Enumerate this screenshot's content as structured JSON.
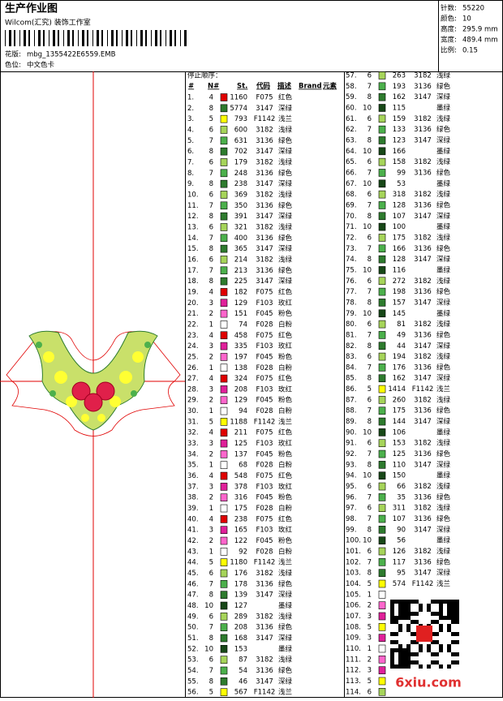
{
  "header": {
    "title": "生产作业图",
    "subtitle": "Wilcom(汇究) 装饰工作室",
    "design_label": "花版:",
    "design": "mbg_1355422E6559.EMB",
    "chart_label": "色位:",
    "chart": "中文色卡"
  },
  "info": [
    [
      "针数:",
      "55220"
    ],
    [
      "颜色:",
      "10"
    ],
    [
      "高度:",
      "295.9 mm"
    ],
    [
      "宽度:",
      "489.4 mm"
    ],
    [
      "比例:",
      "0.15"
    ]
  ],
  "table": {
    "caption": "停止顺序：",
    "columns": [
      "#",
      "N#",
      "St.",
      "代码",
      "描述",
      "Brand",
      "元素"
    ],
    "palette": {
      "1": "#ffffff",
      "2": "#ff66cc",
      "3": "#e0209a",
      "4": "#e00000",
      "5": "#ffff00",
      "6": "#a6d45a",
      "7": "#4cb04c",
      "8": "#2e7b2e",
      "10": "#184818"
    },
    "rows": [
      [
        "1.",
        4,
        1160,
        "F075",
        "红色"
      ],
      [
        "2.",
        8,
        5774,
        "3147",
        "深绿"
      ],
      [
        "3.",
        5,
        793,
        "F1142",
        "浅兰"
      ],
      [
        "4.",
        6,
        600,
        "3182",
        "浅绿"
      ],
      [
        "5.",
        7,
        631,
        "3136",
        "绿色"
      ],
      [
        "6.",
        8,
        702,
        "3147",
        "深绿"
      ],
      [
        "7.",
        6,
        179,
        "3182",
        "浅绿"
      ],
      [
        "8.",
        7,
        248,
        "3136",
        "绿色"
      ],
      [
        "9.",
        8,
        238,
        "3147",
        "深绿"
      ],
      [
        "10.",
        6,
        369,
        "3182",
        "浅绿"
      ],
      [
        "11.",
        7,
        350,
        "3136",
        "绿色"
      ],
      [
        "12.",
        8,
        391,
        "3147",
        "深绿"
      ],
      [
        "13.",
        6,
        321,
        "3182",
        "浅绿"
      ],
      [
        "14.",
        7,
        400,
        "3136",
        "绿色"
      ],
      [
        "15.",
        8,
        365,
        "3147",
        "深绿"
      ],
      [
        "16.",
        6,
        214,
        "3182",
        "浅绿"
      ],
      [
        "17.",
        7,
        213,
        "3136",
        "绿色"
      ],
      [
        "18.",
        8,
        225,
        "3147",
        "深绿"
      ],
      [
        "19.",
        4,
        182,
        "F075",
        "红色"
      ],
      [
        "20.",
        3,
        129,
        "F103",
        "玫红"
      ],
      [
        "21.",
        2,
        151,
        "F045",
        "粉色"
      ],
      [
        "22.",
        1,
        74,
        "F028",
        "白粉"
      ],
      [
        "23.",
        4,
        458,
        "F075",
        "红色"
      ],
      [
        "24.",
        3,
        335,
        "F103",
        "玫红"
      ],
      [
        "25.",
        2,
        197,
        "F045",
        "粉色"
      ],
      [
        "26.",
        1,
        138,
        "F028",
        "白粉"
      ],
      [
        "27.",
        4,
        324,
        "F075",
        "红色"
      ],
      [
        "28.",
        3,
        208,
        "F103",
        "玫红"
      ],
      [
        "29.",
        2,
        129,
        "F045",
        "粉色"
      ],
      [
        "30.",
        1,
        94,
        "F028",
        "白粉"
      ],
      [
        "31.",
        5,
        1188,
        "F1142",
        "浅兰"
      ],
      [
        "32.",
        4,
        211,
        "F075",
        "红色"
      ],
      [
        "33.",
        3,
        125,
        "F103",
        "玫红"
      ],
      [
        "34.",
        2,
        137,
        "F045",
        "粉色"
      ],
      [
        "35.",
        1,
        68,
        "F028",
        "白粉"
      ],
      [
        "36.",
        4,
        548,
        "F075",
        "红色"
      ],
      [
        "37.",
        3,
        378,
        "F103",
        "玫红"
      ],
      [
        "38.",
        2,
        316,
        "F045",
        "粉色"
      ],
      [
        "39.",
        1,
        175,
        "F028",
        "白粉"
      ],
      [
        "40.",
        4,
        238,
        "F075",
        "红色"
      ],
      [
        "41.",
        3,
        165,
        "F103",
        "玫红"
      ],
      [
        "42.",
        2,
        122,
        "F045",
        "粉色"
      ],
      [
        "43.",
        1,
        92,
        "F028",
        "白粉"
      ],
      [
        "44.",
        5,
        1180,
        "F1142",
        "浅兰"
      ],
      [
        "45.",
        6,
        176,
        "3182",
        "浅绿"
      ],
      [
        "46.",
        7,
        178,
        "3136",
        "绿色"
      ],
      [
        "47.",
        8,
        139,
        "3147",
        "深绿"
      ],
      [
        "48.",
        10,
        127,
        null,
        "墨绿"
      ],
      [
        "49.",
        6,
        289,
        "3182",
        "浅绿"
      ],
      [
        "50.",
        7,
        208,
        "3136",
        "绿色"
      ],
      [
        "51.",
        8,
        168,
        "3147",
        "深绿"
      ],
      [
        "52.",
        10,
        153,
        null,
        "墨绿"
      ],
      [
        "53.",
        6,
        87,
        "3182",
        "浅绿"
      ],
      [
        "54.",
        7,
        54,
        "3136",
        "绿色"
      ],
      [
        "55.",
        8,
        46,
        "3147",
        "深绿"
      ],
      [
        "56.",
        5,
        567,
        "F1142",
        "浅兰"
      ],
      [
        "57.",
        6,
        263,
        "3182",
        "浅绿"
      ],
      [
        "58.",
        7,
        193,
        "3136",
        "绿色"
      ],
      [
        "59.",
        8,
        162,
        "3147",
        "深绿"
      ],
      [
        "60.",
        10,
        115,
        null,
        "墨绿"
      ],
      [
        "61.",
        6,
        159,
        "3182",
        "浅绿"
      ],
      [
        "62.",
        7,
        133,
        "3136",
        "绿色"
      ],
      [
        "63.",
        8,
        123,
        "3147",
        "深绿"
      ],
      [
        "64.",
        10,
        166,
        null,
        "墨绿"
      ],
      [
        "65.",
        6,
        158,
        "3182",
        "浅绿"
      ],
      [
        "66.",
        7,
        99,
        "3136",
        "绿色"
      ],
      [
        "67.",
        10,
        53,
        null,
        "墨绿"
      ],
      [
        "68.",
        6,
        318,
        "3182",
        "浅绿"
      ],
      [
        "69.",
        7,
        128,
        "3136",
        "绿色"
      ],
      [
        "70.",
        8,
        107,
        "3147",
        "深绿"
      ],
      [
        "71.",
        10,
        100,
        null,
        "墨绿"
      ],
      [
        "72.",
        6,
        175,
        "3182",
        "浅绿"
      ],
      [
        "73.",
        7,
        166,
        "3136",
        "绿色"
      ],
      [
        "74.",
        8,
        128,
        "3147",
        "深绿"
      ],
      [
        "75.",
        10,
        116,
        null,
        "墨绿"
      ],
      [
        "76.",
        6,
        272,
        "3182",
        "浅绿"
      ],
      [
        "77.",
        7,
        198,
        "3136",
        "绿色"
      ],
      [
        "78.",
        8,
        157,
        "3147",
        "深绿"
      ],
      [
        "79.",
        10,
        145,
        null,
        "墨绿"
      ],
      [
        "80.",
        6,
        81,
        "3182",
        "浅绿"
      ],
      [
        "81.",
        7,
        49,
        "3136",
        "绿色"
      ],
      [
        "82.",
        8,
        44,
        "3147",
        "深绿"
      ],
      [
        "83.",
        6,
        194,
        "3182",
        "浅绿"
      ],
      [
        "84.",
        7,
        176,
        "3136",
        "绿色"
      ],
      [
        "85.",
        8,
        162,
        "3147",
        "深绿"
      ],
      [
        "86.",
        5,
        1414,
        "F1142",
        "浅兰"
      ],
      [
        "87.",
        6,
        260,
        "3182",
        "浅绿"
      ],
      [
        "88.",
        7,
        175,
        "3136",
        "绿色"
      ],
      [
        "89.",
        8,
        144,
        "3147",
        "深绿"
      ],
      [
        "90.",
        10,
        106,
        null,
        "墨绿"
      ],
      [
        "91.",
        6,
        153,
        "3182",
        "浅绿"
      ],
      [
        "92.",
        7,
        125,
        "3136",
        "绿色"
      ],
      [
        "93.",
        8,
        110,
        "3147",
        "深绿"
      ],
      [
        "94.",
        10,
        150,
        null,
        "墨绿"
      ],
      [
        "95.",
        6,
        66,
        "3182",
        "浅绿"
      ],
      [
        "96.",
        7,
        35,
        "3136",
        "绿色"
      ],
      [
        "97.",
        6,
        311,
        "3182",
        "浅绿"
      ],
      [
        "98.",
        7,
        107,
        "3136",
        "绿色"
      ],
      [
        "99.",
        8,
        90,
        "3147",
        "深绿"
      ],
      [
        "100.",
        10,
        56,
        null,
        "墨绿"
      ],
      [
        "101.",
        6,
        126,
        "3182",
        "浅绿"
      ],
      [
        "102.",
        7,
        117,
        "3136",
        "绿色"
      ],
      [
        "103.",
        8,
        95,
        "3147",
        "深绿"
      ],
      [
        "104.",
        5,
        574,
        "F1142",
        "浅兰"
      ],
      [
        "105.",
        1,
        null,
        null,
        null
      ],
      [
        "106.",
        2,
        null,
        null,
        null
      ],
      [
        "107.",
        3,
        null,
        null,
        null
      ],
      [
        "108.",
        5,
        null,
        null,
        null
      ],
      [
        "109.",
        3,
        null,
        null,
        null
      ],
      [
        "110.",
        1,
        null,
        null,
        null
      ],
      [
        "111.",
        2,
        null,
        null,
        null
      ],
      [
        "112.",
        3,
        null,
        null,
        null
      ],
      [
        "113.",
        5,
        null,
        null,
        null
      ],
      [
        "114.",
        6,
        null,
        null,
        null
      ]
    ]
  },
  "watermark": "6xiu.com"
}
